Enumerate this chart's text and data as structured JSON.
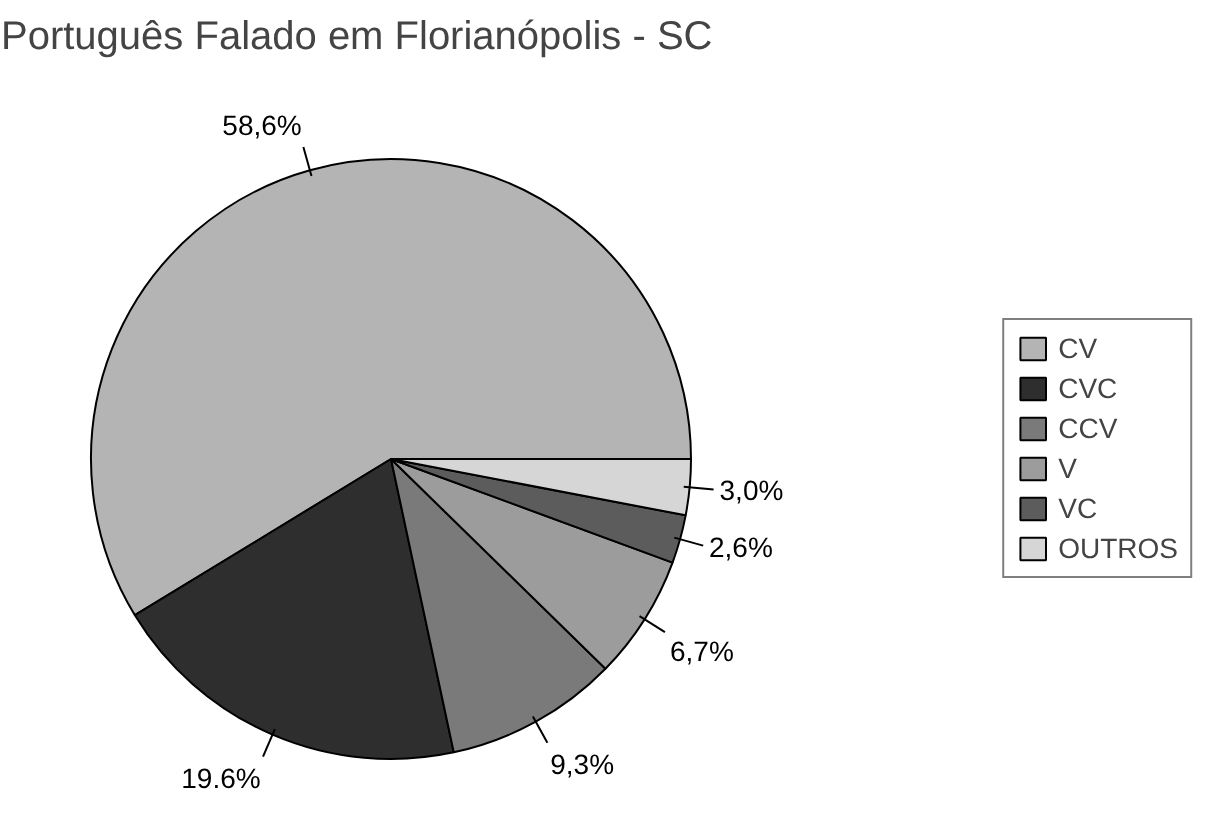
{
  "chart_data": {
    "type": "pie",
    "title": "Português Falado em Florianópolis - SC",
    "categories": [
      "CV",
      "CVC",
      "CCV",
      "V",
      "VC",
      "OUTROS"
    ],
    "values": [
      58.6,
      19.6,
      9.3,
      6.7,
      2.6,
      3.0
    ],
    "value_labels": [
      "58,6%",
      "19.6%",
      "9,3%",
      "6,7%",
      "2,6%",
      "3,0%"
    ],
    "colors": [
      "#b4b4b4",
      "#2e2e2e",
      "#7a7a7a",
      "#9c9c9c",
      "#5c5c5c",
      "#d6d6d6"
    ],
    "legend": "right"
  }
}
